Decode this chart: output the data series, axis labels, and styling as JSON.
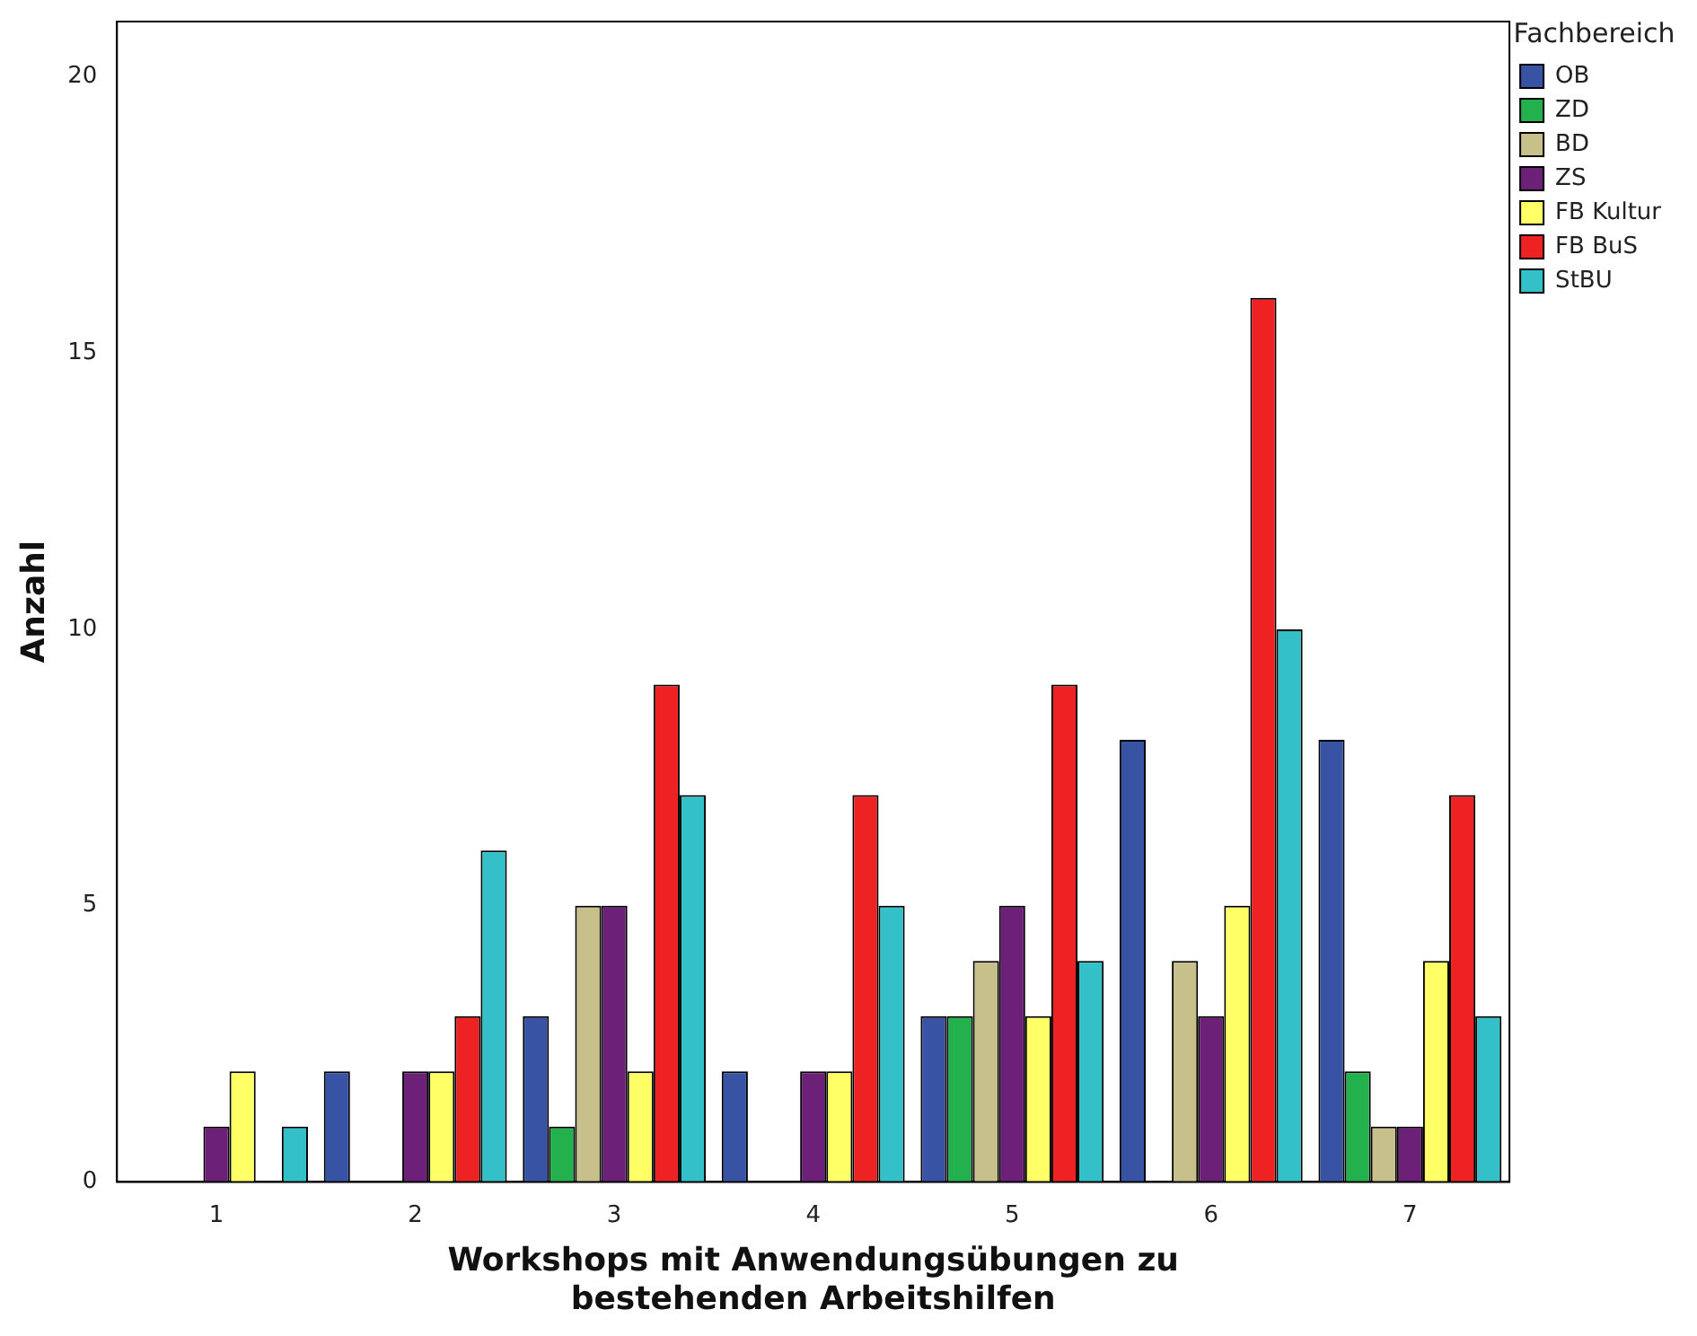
{
  "chart_data": {
    "type": "bar",
    "xlabel": "Workshops mit Anwendungsübungen zu\nbestehenden Arbeitshilfen",
    "ylabel": "Anzahl",
    "legend_title": "Fachbereich",
    "legend": "right",
    "categories": [
      "1",
      "2",
      "3",
      "4",
      "5",
      "6",
      "7"
    ],
    "series": [
      {
        "name": "OB",
        "color": "#3953a4",
        "values": [
          0,
          2,
          3,
          2,
          3,
          8,
          8
        ]
      },
      {
        "name": "ZD",
        "color": "#22b14c",
        "values": [
          0,
          0,
          1,
          0,
          3,
          0,
          2
        ]
      },
      {
        "name": "BD",
        "color": "#c8c08a",
        "values": [
          0,
          0,
          5,
          0,
          4,
          4,
          1
        ]
      },
      {
        "name": "ZS",
        "color": "#6d2077",
        "values": [
          1,
          2,
          5,
          2,
          5,
          3,
          1
        ]
      },
      {
        "name": "FB Kultur",
        "color": "#ffff66",
        "values": [
          2,
          2,
          2,
          2,
          3,
          5,
          4
        ]
      },
      {
        "name": "FB BuS",
        "color": "#ee2222",
        "values": [
          0,
          3,
          9,
          7,
          9,
          16,
          7
        ]
      },
      {
        "name": "StBU",
        "color": "#33c0c8",
        "values": [
          1,
          6,
          7,
          5,
          4,
          10,
          3
        ]
      }
    ],
    "ylim": [
      0,
      21
    ],
    "yticks": [
      0,
      5,
      10,
      15,
      20
    ],
    "grid": false
  }
}
